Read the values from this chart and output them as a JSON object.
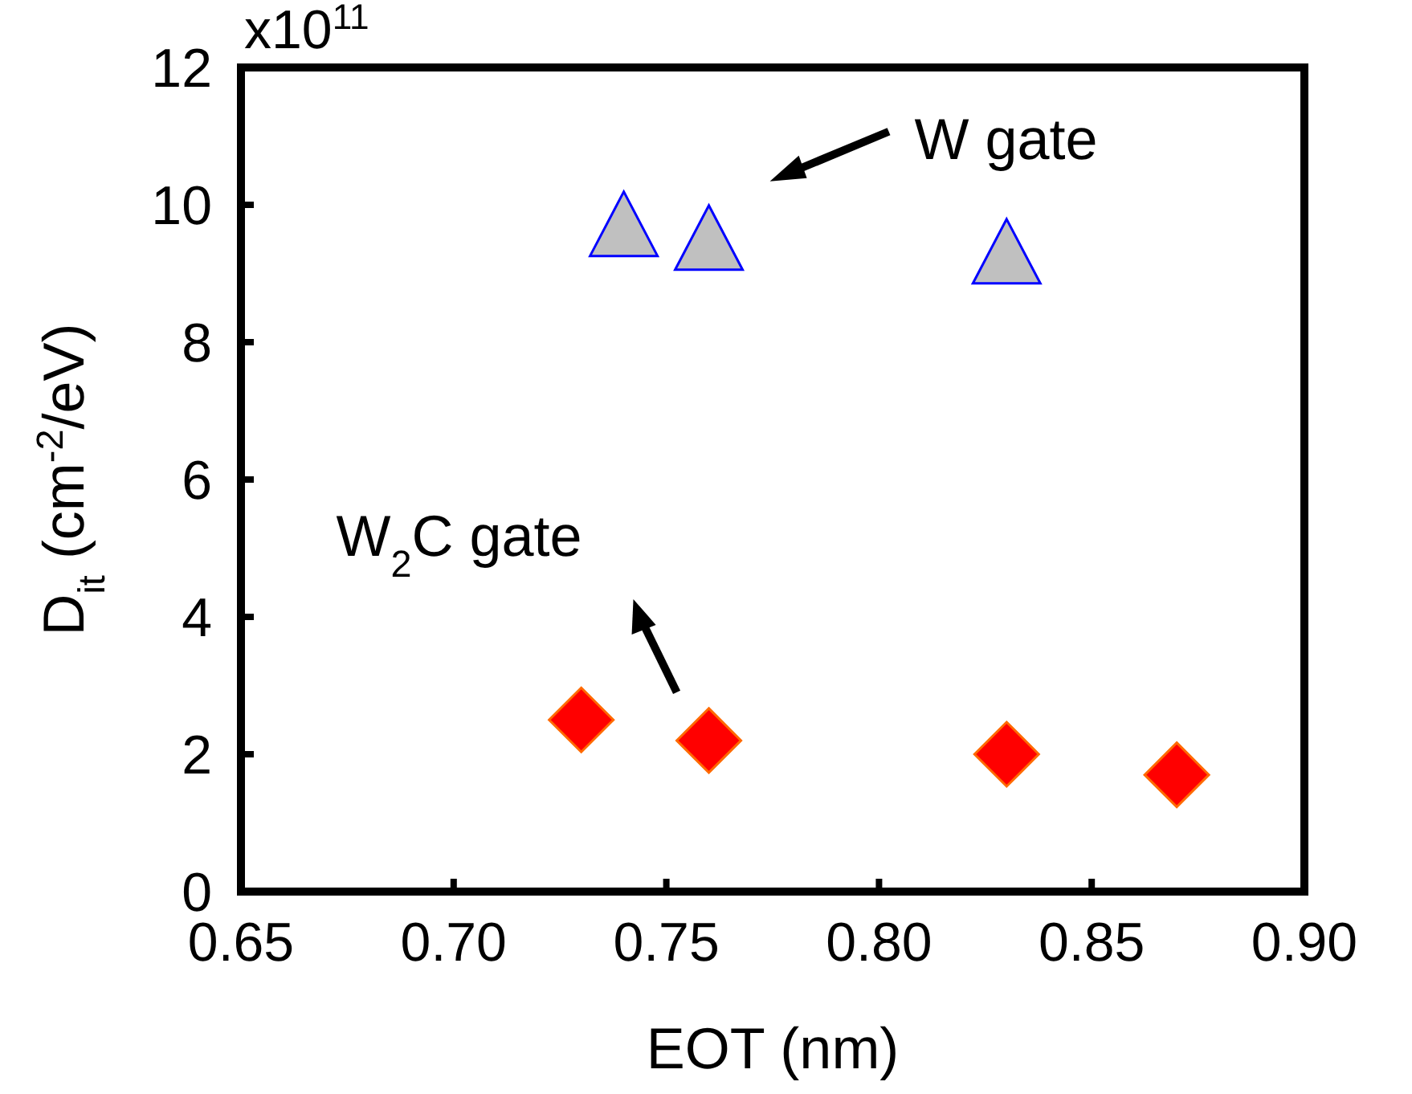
{
  "chart_data": {
    "type": "scatter",
    "xlabel": "EOT (nm)",
    "ylabel": "D$_{it}$ (cm$^{-2}$/eV)",
    "annotations": [
      "x10$^{11}$"
    ],
    "xlim": [
      0.65,
      0.9
    ],
    "xticks": [
      {
        "value": 0.65,
        "label": "0.65"
      },
      {
        "value": 0.7,
        "label": "0.70"
      },
      {
        "value": 0.75,
        "label": "0.75"
      },
      {
        "value": 0.8,
        "label": "0.80"
      },
      {
        "value": 0.85,
        "label": "0.85"
      },
      {
        "value": 0.9,
        "label": "0.90"
      }
    ],
    "ylim": [
      0,
      12
    ],
    "yticks": [
      0,
      2,
      4,
      6,
      8,
      10,
      12
    ],
    "grid": false,
    "series": [
      {
        "name": "W gate",
        "color": "#c0c0c0",
        "marker": "triangle",
        "x": [
          0.74,
          0.76,
          0.83
        ],
        "values": [
          9.7,
          9.5,
          9.3
        ]
      },
      {
        "name": "W$_{2}$C gate",
        "color": "#ff0000",
        "marker": "diamond",
        "x": [
          0.73,
          0.76,
          0.83,
          0.87
        ],
        "values": [
          2.5,
          2.2,
          2.0,
          1.7
        ]
      }
    ]
  }
}
